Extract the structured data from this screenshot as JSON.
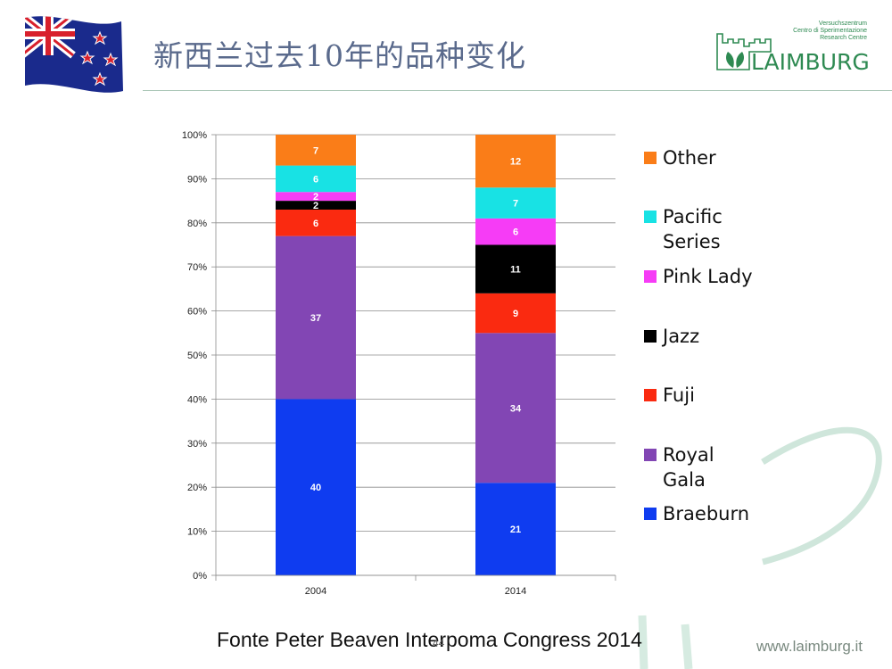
{
  "header": {
    "title": "新西兰过去10年的品种变化",
    "logo": {
      "lines": [
        "Versuchszentrum",
        "Centro di Sperimentazione",
        "Research Centre"
      ],
      "word": "LAIMBURG"
    }
  },
  "footer": {
    "source": "Fonte Peter Beaven Interpoma Congress 2014",
    "page_number": "44",
    "url": "www.laimburg.it"
  },
  "colors": {
    "Braeburn": "#0f3cf0",
    "Royal Gala": "#8246b4",
    "Fuji": "#fa2a10",
    "Jazz": "#000000",
    "Pink Lady": "#f63cf6",
    "Pacific Series": "#18e2e4",
    "Other": "#fa7d18",
    "accent_green": "#2e8a52"
  },
  "chart_data": {
    "type": "bar",
    "stacked": true,
    "categories": [
      "2004",
      "2014"
    ],
    "series": [
      {
        "name": "Braeburn",
        "values": [
          40,
          21
        ]
      },
      {
        "name": "Royal Gala",
        "values": [
          37,
          34
        ]
      },
      {
        "name": "Fuji",
        "values": [
          6,
          9
        ]
      },
      {
        "name": "Jazz",
        "values": [
          2,
          11
        ]
      },
      {
        "name": "Pink Lady",
        "values": [
          2,
          6
        ]
      },
      {
        "name": "Pacific Series",
        "values": [
          6,
          7
        ]
      },
      {
        "name": "Other",
        "values": [
          7,
          12
        ]
      }
    ],
    "ylim": [
      0,
      100
    ],
    "yticks": [
      "0%",
      "10%",
      "20%",
      "30%",
      "40%",
      "50%",
      "60%",
      "70%",
      "80%",
      "90%",
      "100%"
    ],
    "grid": true,
    "legend_position": "right",
    "legend_order": [
      "Other",
      "Pacific Series",
      "Pink Lady",
      "Jazz",
      "Fuji",
      "Royal Gala",
      "Braeburn"
    ]
  }
}
